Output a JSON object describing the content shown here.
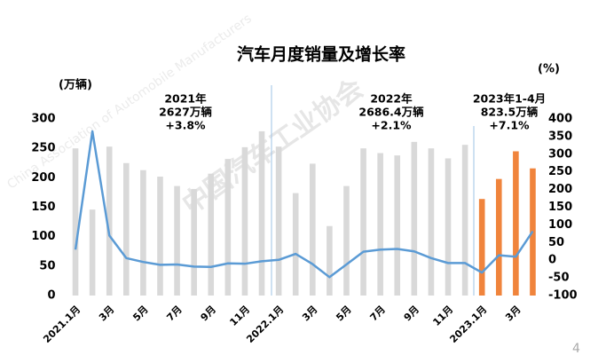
{
  "chart_data": {
    "type": "bar_line",
    "title": "汽车月度销量及增长率",
    "y_label": "(万辆)",
    "y2_label": "(%)",
    "categories": [
      "2021.1月",
      null,
      "3月",
      null,
      "5月",
      null,
      "7月",
      null,
      "9月",
      null,
      "11月",
      null,
      "2022.1月",
      null,
      "3月",
      null,
      "5月",
      null,
      "7月",
      null,
      "9月",
      null,
      "11月",
      null,
      "2023.1月",
      null,
      "3月",
      null
    ],
    "series": [
      {
        "type": "bar",
        "colors": [
          "#d9d9d9",
          "#d9d9d9",
          "#d9d9d9",
          "#d9d9d9",
          "#d9d9d9",
          "#d9d9d9",
          "#d9d9d9",
          "#d9d9d9",
          "#d9d9d9",
          "#d9d9d9",
          "#d9d9d9",
          "#d9d9d9",
          "#d9d9d9",
          "#d9d9d9",
          "#d9d9d9",
          "#d9d9d9",
          "#d9d9d9",
          "#d9d9d9",
          "#d9d9d9",
          "#d9d9d9",
          "#d9d9d9",
          "#d9d9d9",
          "#d9d9d9",
          "#d9d9d9",
          "#f0843c",
          "#f0843c",
          "#f0843c",
          "#f0843c"
        ],
        "values": [
          250,
          146,
          253,
          225,
          213,
          202,
          186,
          181,
          207,
          232,
          252,
          279,
          253,
          174,
          224,
          118,
          186,
          250,
          242,
          238,
          261,
          250,
          233,
          256,
          164,
          198,
          245,
          216
        ]
      },
      {
        "type": "line",
        "axis": "y2",
        "color": "#5b9bd5",
        "values": [
          30,
          365,
          70,
          6,
          -5,
          -13,
          -12,
          -18,
          -19,
          -9,
          -10,
          -3,
          1,
          18,
          -11,
          -48,
          -12,
          24,
          30,
          32,
          25,
          6,
          -8,
          -8,
          -35,
          14,
          10,
          82
        ]
      }
    ],
    "ylim": [
      0,
      300
    ],
    "yticks": [
      0,
      50,
      100,
      150,
      200,
      250,
      300
    ],
    "y2lim": [
      -100,
      400
    ],
    "y2ticks": [
      -100,
      -50,
      0,
      50,
      100,
      150,
      200,
      250,
      300,
      350,
      400
    ],
    "annotations": [
      {
        "lines": [
          "2021年",
          "2627万辆",
          "+3.8%"
        ]
      },
      {
        "lines": [
          "2022年",
          "2686.4万辆",
          "+2.1%"
        ]
      },
      {
        "lines": [
          "2023年1-4月",
          "823.5万辆",
          "+7.1%"
        ]
      }
    ],
    "watermark": [
      "中国汽车工业协会",
      "China Association of Automobile Manufacturers"
    ],
    "page_number": "4"
  }
}
